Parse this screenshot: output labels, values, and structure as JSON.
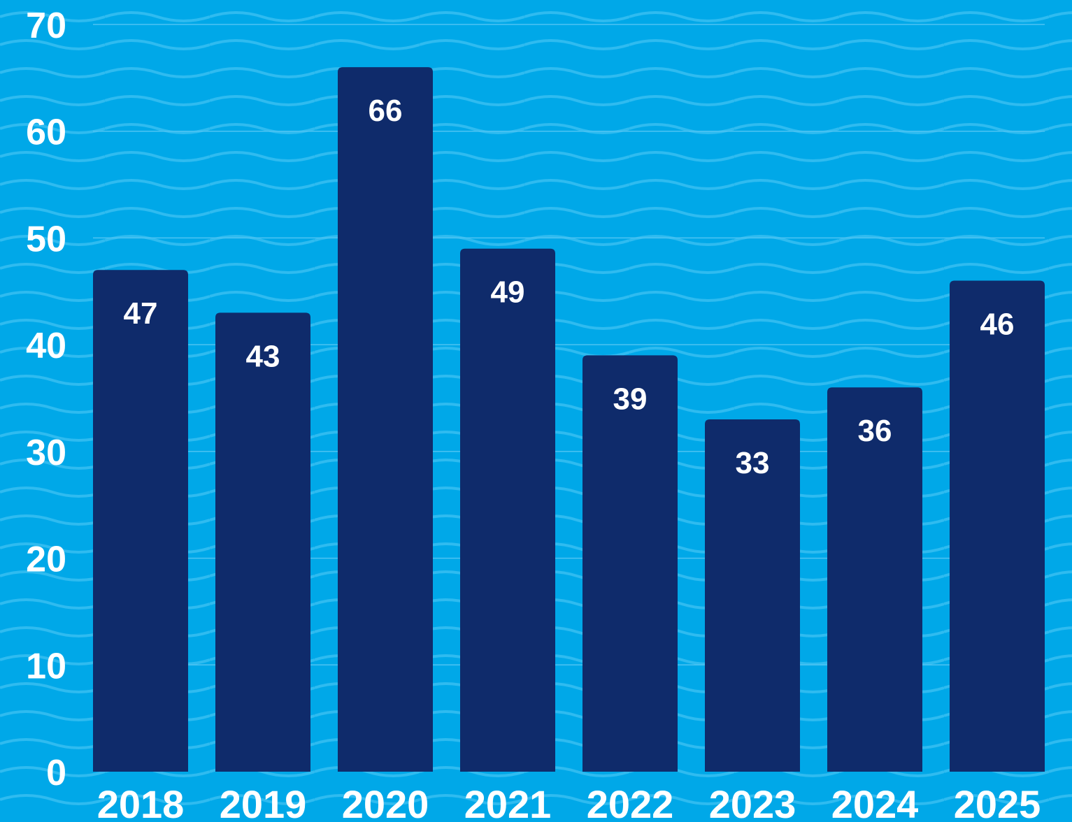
{
  "chart_data": {
    "type": "bar",
    "categories": [
      "2018",
      "2019",
      "2020",
      "2021",
      "2022",
      "2023",
      "2024",
      "2025"
    ],
    "values": [
      47,
      43,
      66,
      49,
      39,
      33,
      36,
      46
    ],
    "ylim": [
      0,
      70
    ],
    "yticks": [
      0,
      10,
      20,
      30,
      40,
      50,
      60,
      70
    ],
    "grid": true,
    "legend": "none",
    "data_labels": "inside-top"
  },
  "colors": {
    "background": "#00A8E8",
    "wave": "#2FBBF0",
    "bar": "#0F2B6B",
    "text": "#FFFFFF",
    "grid": "#4EC3F2"
  }
}
